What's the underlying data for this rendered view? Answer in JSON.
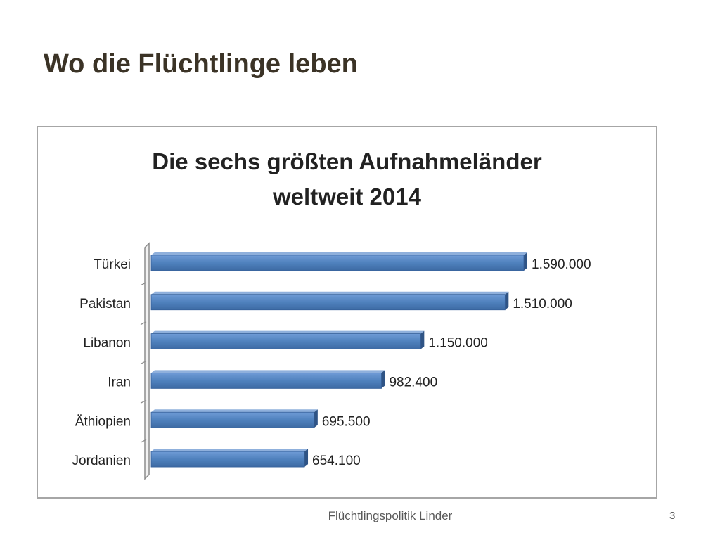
{
  "slide": {
    "title": "Wo die Flüchtlinge leben",
    "footer": "Flüchtlingspolitik Linder",
    "page_number": "3"
  },
  "chart_data": {
    "type": "bar",
    "orientation": "horizontal",
    "title_lines": [
      "Die sechs größten Aufnahmeländer",
      "weltweit 2014"
    ],
    "categories": [
      "Türkei",
      "Pakistan",
      "Libanon",
      "Iran",
      "Äthiopien",
      "Jordanien"
    ],
    "values": [
      1590000,
      1510000,
      1150000,
      982400,
      695500,
      654100
    ],
    "data_labels": [
      "1.590.000",
      "1.510.000",
      "1.150.000",
      "982.400",
      "695.500",
      "654.100"
    ],
    "xlim": [
      0,
      1590000
    ],
    "grid": false,
    "legend": "none",
    "style": "3d",
    "bar_color": "#4f81bd"
  }
}
